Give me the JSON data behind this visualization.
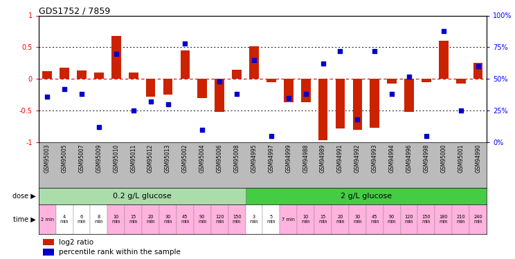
{
  "title": "GDS1752 / 7859",
  "samples": [
    "GSM95003",
    "GSM95005",
    "GSM95007",
    "GSM95009",
    "GSM95010",
    "GSM95011",
    "GSM95012",
    "GSM95013",
    "GSM95002",
    "GSM95004",
    "GSM95006",
    "GSM95008",
    "GSM94995",
    "GSM94997",
    "GSM94999",
    "GSM94988",
    "GSM94989",
    "GSM94991",
    "GSM94992",
    "GSM94993",
    "GSM94994",
    "GSM94996",
    "GSM94998",
    "GSM95000",
    "GSM95001",
    "GSM94990"
  ],
  "log2_ratio": [
    0.12,
    0.18,
    0.14,
    0.1,
    0.68,
    0.1,
    -0.28,
    -0.25,
    0.45,
    -0.3,
    -0.52,
    0.15,
    0.52,
    -0.05,
    -0.37,
    -0.37,
    -0.97,
    -0.78,
    -0.8,
    -0.77,
    -0.07,
    -0.52,
    -0.05,
    0.6,
    -0.07,
    0.25
  ],
  "percentile_rank": [
    36,
    42,
    38,
    12,
    70,
    25,
    32,
    30,
    78,
    10,
    48,
    38,
    65,
    5,
    35,
    38,
    62,
    72,
    18,
    72,
    38,
    52,
    5,
    88,
    25,
    60
  ],
  "bar_color": "#cc2200",
  "dot_color": "#0000cc",
  "time_colors": [
    "#ffb3de",
    "#ffffff",
    "#ffffff",
    "#ffffff",
    "#ffb3de",
    "#ffb3de",
    "#ffb3de",
    "#ffb3de",
    "#ffb3de",
    "#ffb3de",
    "#ffb3de",
    "#ffb3de",
    "#ffffff",
    "#ffffff",
    "#ffb3de",
    "#ffb3de",
    "#ffb3de",
    "#ffb3de",
    "#ffb3de",
    "#ffb3de",
    "#ffb3de",
    "#ffb3de",
    "#ffb3de",
    "#ffb3de",
    "#ffb3de",
    "#ffb3de"
  ],
  "time_labels": [
    "2 min",
    "4\nmin",
    "6\nmin",
    "8\nmin",
    "10\nmin",
    "15\nmin",
    "20\nmin",
    "30\nmin",
    "45\nmin",
    "90\nmin",
    "120\nmin",
    "150\nmin",
    "3\nmin",
    "5\nmin",
    "7 min",
    "10\nmin",
    "15\nmin",
    "20\nmin",
    "30\nmin",
    "45\nmin",
    "90\nmin",
    "120\nmin",
    "150\nmin",
    "180\nmin",
    "210\nmin",
    "240\nmin"
  ],
  "dose1_label": "0.2 g/L glucose",
  "dose2_label": "2 g/L glucose",
  "dose1_color": "#aaddaa",
  "dose2_color": "#44cc44",
  "sample_bg": "#bbbbbb",
  "bg_color": "#ffffff"
}
